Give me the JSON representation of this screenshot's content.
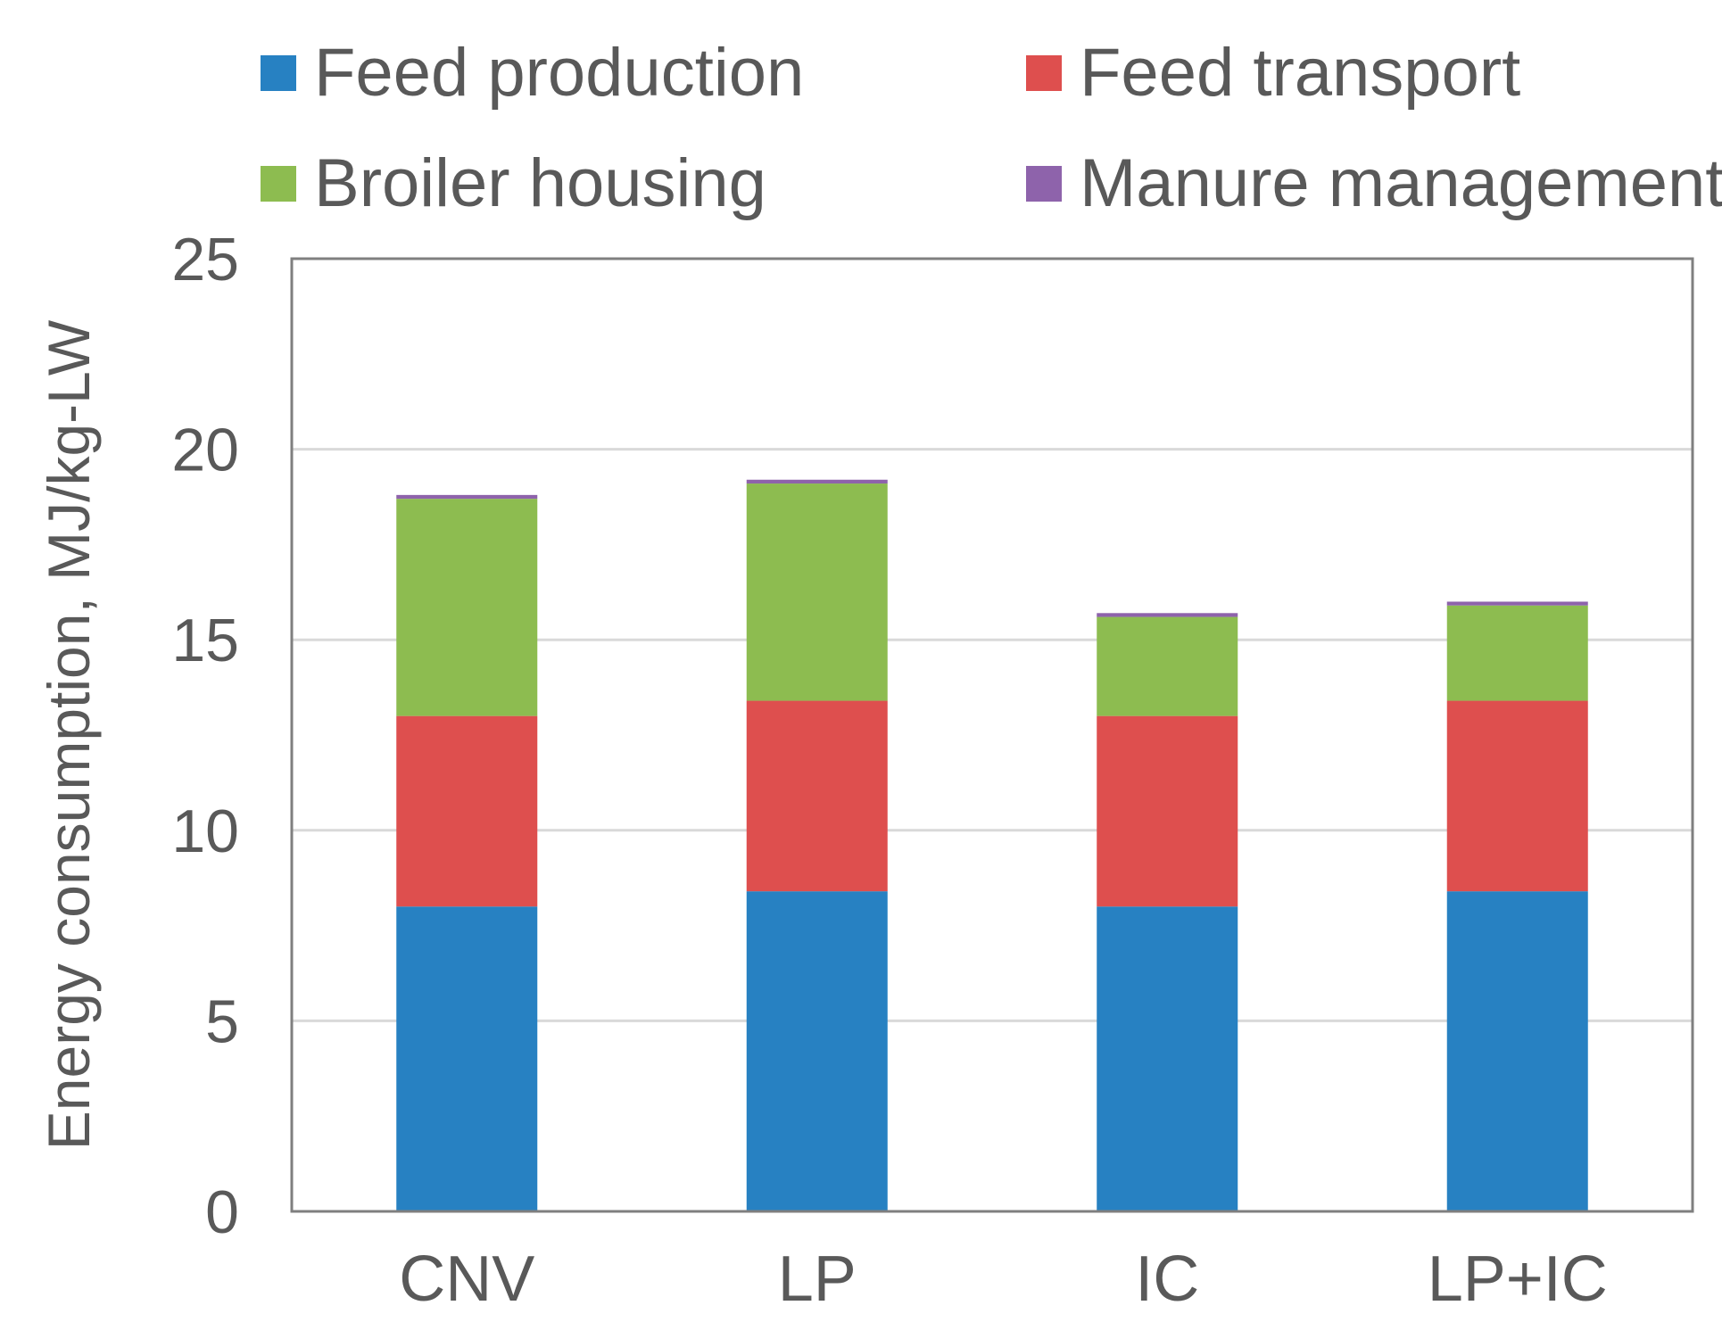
{
  "chart_data": {
    "type": "bar",
    "stacked": true,
    "title": "",
    "xlabel": "",
    "ylabel": "Energy consumption,  MJ/kg-LW",
    "ylim": [
      0,
      25
    ],
    "yticks": [
      0,
      5,
      10,
      15,
      20,
      25
    ],
    "grid": true,
    "legend_position": "top",
    "categories": [
      "CNV",
      "LP",
      "IC",
      "LP+IC"
    ],
    "series": [
      {
        "name": "Feed production",
        "color": "#2781C2",
        "values": [
          8.0,
          8.4,
          8.0,
          8.4
        ]
      },
      {
        "name": "Feed transport",
        "color": "#DE4F4E",
        "values": [
          5.0,
          5.0,
          5.0,
          5.0
        ]
      },
      {
        "name": "Broiler housing",
        "color": "#8DBC50",
        "values": [
          5.7,
          5.7,
          2.6,
          2.5
        ]
      },
      {
        "name": "Manure management",
        "color": "#8E63AB",
        "values": [
          0.1,
          0.1,
          0.1,
          0.1
        ]
      }
    ]
  }
}
